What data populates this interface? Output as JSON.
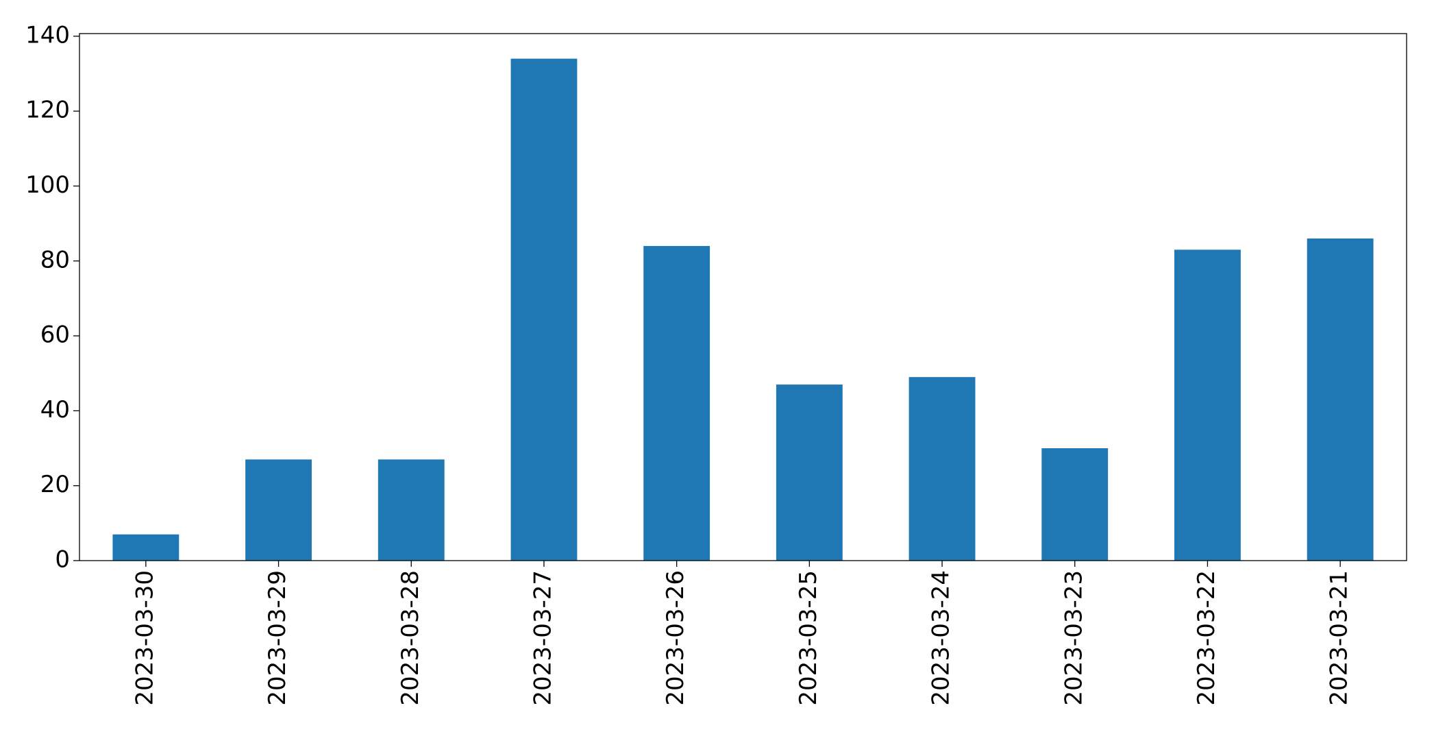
{
  "chart_data": {
    "type": "bar",
    "categories": [
      "2023-03-30",
      "2023-03-29",
      "2023-03-28",
      "2023-03-27",
      "2023-03-26",
      "2023-03-25",
      "2023-03-24",
      "2023-03-23",
      "2023-03-22",
      "2023-03-21"
    ],
    "values": [
      7,
      27,
      27,
      134,
      84,
      47,
      49,
      30,
      83,
      86
    ],
    "color": "#1f77b4",
    "ylim": [
      0,
      140.7
    ],
    "yticks": [
      0,
      20,
      40,
      60,
      80,
      100,
      120,
      140
    ],
    "grid": false
  }
}
